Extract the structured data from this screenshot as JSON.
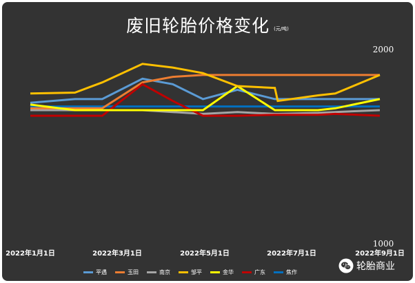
{
  "chart_data": {
    "type": "line",
    "title": "废旧轮胎价格变化",
    "unit": "(元/吨)",
    "ylim": [
      1000,
      2000
    ],
    "y_tick_labels": [
      "2000",
      "1000"
    ],
    "x_tick_labels": [
      "2022年1月1日",
      "2022年3月1日",
      "2022年5月1日",
      "2022年7月1日",
      "2022年9月1日"
    ],
    "x": [
      "2022-01-01",
      "2022-02-01",
      "2022-02-20",
      "2022-03-20",
      "2022-04-10",
      "2022-05-01",
      "2022-05-25",
      "2022-06-20",
      "2022-06-22",
      "2022-07-20",
      "2022-08-01",
      "2022-09-01"
    ],
    "series": [
      {
        "name": "平遇",
        "color": "#5b9bd5",
        "values": [
          1750,
          1770,
          1770,
          1880,
          1850,
          1770,
          1820,
          1770,
          1770,
          1770,
          1770,
          1770
        ]
      },
      {
        "name": "玉田",
        "color": "#ed7d31",
        "values": [
          1720,
          1720,
          1720,
          1860,
          1890,
          1900,
          1900,
          1900,
          1900,
          1900,
          1900,
          1900
        ]
      },
      {
        "name": "南京",
        "color": "#a5a5a5",
        "values": [
          1710,
          1710,
          1710,
          1710,
          1700,
          1690,
          1700,
          1690,
          1690,
          1695,
          1700,
          1710
        ]
      },
      {
        "name": "邹平",
        "color": "#ffc000",
        "values": [
          1800,
          1805,
          1860,
          1960,
          1940,
          1910,
          1840,
          1830,
          1760,
          1790,
          1800,
          1900
        ]
      },
      {
        "name": "金华",
        "color": "#ffff00",
        "values": [
          1740,
          1710,
          1710,
          1710,
          1710,
          1710,
          1840,
          1710,
          1710,
          1710,
          1720,
          1770
        ]
      },
      {
        "name": "广东",
        "color": "#c00000",
        "values": [
          1680,
          1680,
          1680,
          1850,
          1760,
          1680,
          1680,
          1685,
          1685,
          1685,
          1690,
          1680
        ]
      },
      {
        "name": "焦作",
        "color": "#0070c0",
        "values": [
          1730,
          1730,
          1730,
          1730,
          1730,
          1730,
          1730,
          1730,
          1730,
          1730,
          1730,
          1730
        ]
      }
    ],
    "legend_position": "bottom",
    "grid": false
  },
  "watermark": {
    "text": "轮胎商业",
    "icon": "wechat-icon"
  }
}
